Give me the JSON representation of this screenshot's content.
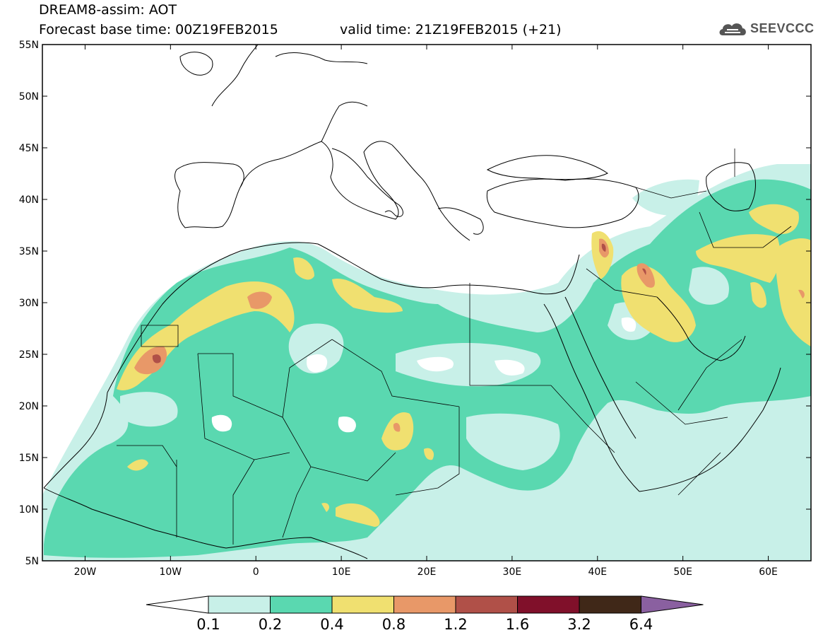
{
  "header": {
    "title": "DREAM8-assim: AOT",
    "base_time": "Forecast base time: 00Z19FEB2015",
    "valid_time": "valid time: 21Z19FEB2015 (+21)"
  },
  "logo": {
    "text": "SEEVCCC",
    "icon": "cloud-logo-icon"
  },
  "map": {
    "lat_labels": [
      "55N",
      "50N",
      "45N",
      "40N",
      "35N",
      "30N",
      "25N",
      "20N",
      "15N",
      "10N",
      "5N"
    ],
    "lon_labels": [
      "20W",
      "10W",
      "0",
      "10E",
      "20E",
      "30E",
      "40E",
      "50E",
      "60E"
    ],
    "extent": {
      "lon": [
        -25,
        65
      ],
      "lat": [
        5,
        55
      ]
    }
  },
  "colorbar": {
    "labels": [
      "0.1",
      "0.2",
      "0.4",
      "0.8",
      "1.2",
      "1.6",
      "3.2",
      "6.4"
    ],
    "colors": [
      "#ffffff",
      "#c8f0e8",
      "#5ad8b0",
      "#f0e070",
      "#e89868",
      "#b05048",
      "#80102a",
      "#402818",
      "#8a60a0"
    ]
  }
}
